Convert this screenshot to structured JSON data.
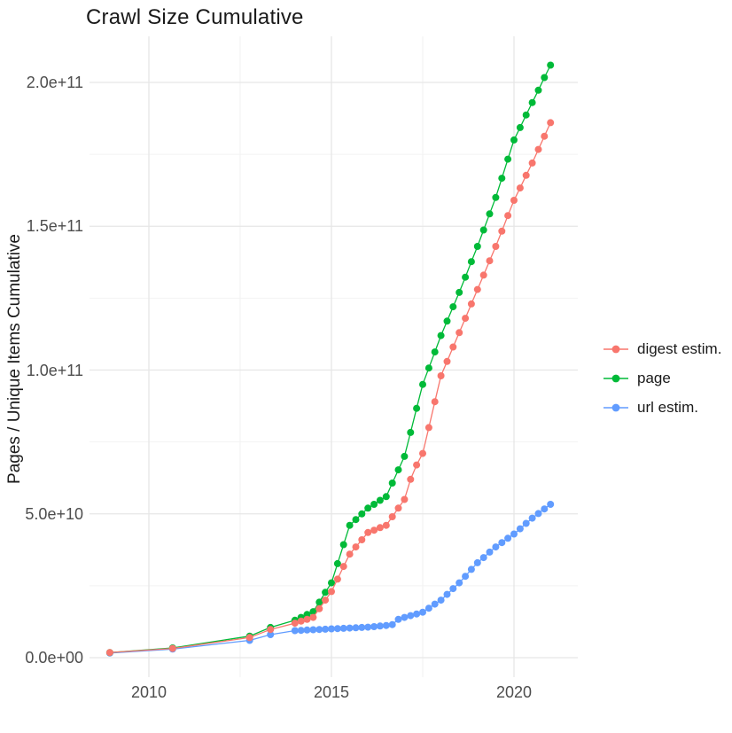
{
  "title": "Crawl Size Cumulative",
  "y_axis_label": "Pages / Unique Items Cumulative",
  "x_axis_label": "",
  "legend": {
    "position": "right",
    "items": [
      {
        "label": "digest estim.",
        "color": "#F8766D"
      },
      {
        "label": "page",
        "color": "#00BA38"
      },
      {
        "label": "url estim.",
        "color": "#619CFF"
      }
    ]
  },
  "chart_data": {
    "type": "scatter",
    "title": "Crawl Size Cumulative",
    "xlabel": "",
    "ylabel": "Pages / Unique Items Cumulative",
    "grid": true,
    "legend_position": "right",
    "value_unit": "1e9 (billions of pages / unique items)",
    "xlim": [
      2008.4,
      2021.6
    ],
    "ylim_1e9": [
      0,
      212
    ],
    "x_ticks": [
      {
        "label": "2010",
        "year": 2010
      },
      {
        "label": "2015",
        "year": 2015
      },
      {
        "label": "2020",
        "year": 2020
      }
    ],
    "x_minor_ticks": [
      2012.5,
      2017.5
    ],
    "y_ticks": [
      {
        "label": "0.0e+00",
        "value_1e9": 0
      },
      {
        "label": "5.0e+10",
        "value_1e9": 50
      },
      {
        "label": "1.0e+11",
        "value_1e9": 100
      },
      {
        "label": "1.5e+11",
        "value_1e9": 150
      },
      {
        "label": "2.0e+11",
        "value_1e9": 200
      }
    ],
    "y_minor_ticks_1e9": [
      25,
      75,
      125,
      175
    ],
    "x_years": [
      2008.93,
      2010.65,
      2012.76,
      2013.33,
      2014,
      2014.167,
      2014.333,
      2014.5,
      2014.667,
      2014.833,
      2015,
      2015.167,
      2015.333,
      2015.5,
      2015.667,
      2015.833,
      2016,
      2016.167,
      2016.333,
      2016.5,
      2016.667,
      2016.833,
      2017,
      2017.167,
      2017.333,
      2017.5,
      2017.667,
      2017.833,
      2018,
      2018.167,
      2018.333,
      2018.5,
      2018.667,
      2018.833,
      2019,
      2019.167,
      2019.333,
      2019.5,
      2019.667,
      2019.833,
      2020,
      2020.167,
      2020.333,
      2020.5,
      2020.667,
      2020.833,
      2021
    ],
    "series": [
      {
        "name": "digest estim.",
        "color": "#F8766D",
        "values_1e9": [
          1.8,
          3.2,
          7.0,
          9.8,
          12,
          12.7,
          13.3,
          14,
          17,
          20,
          23,
          27.3,
          31.7,
          36,
          38.5,
          41,
          43.5,
          44.3,
          45.2,
          46,
          49,
          52,
          55,
          62,
          67,
          71,
          80,
          89,
          98,
          103,
          108,
          113,
          118,
          123,
          128,
          133,
          138,
          143,
          148.3,
          153.7,
          159,
          163.3,
          167.7,
          172,
          176.7,
          181.3,
          186
        ]
      },
      {
        "name": "page",
        "color": "#00BA38",
        "values_1e9": [
          1.8,
          3.4,
          7.5,
          10.5,
          13,
          14,
          15,
          16,
          19.3,
          22.7,
          26,
          32.7,
          39.3,
          46,
          48,
          50,
          52,
          53.3,
          54.7,
          56,
          60.7,
          65.3,
          70,
          78.3,
          86.7,
          95,
          100.7,
          106.3,
          112,
          117,
          122,
          127,
          132.3,
          137.7,
          143,
          148.7,
          154.3,
          160,
          166.7,
          173.3,
          180,
          184.3,
          188.7,
          193,
          197.3,
          201.7,
          206
        ]
      },
      {
        "name": "url estim.",
        "color": "#619CFF",
        "values_1e9": [
          1.6,
          3.0,
          6.0,
          8.0,
          9.4,
          9.5,
          9.6,
          9.7,
          9.8,
          9.9,
          10.0,
          10.1,
          10.2,
          10.3,
          10.4,
          10.5,
          10.6,
          10.8,
          11.0,
          11.2,
          11.5,
          13.3,
          14,
          14.6,
          15.2,
          15.8,
          17.2,
          18.6,
          20,
          22,
          24,
          26,
          28.3,
          30.7,
          33,
          34.8,
          36.7,
          38.5,
          40,
          41.5,
          43,
          44.8,
          46.7,
          48.5,
          50.1,
          51.7,
          53.3
        ]
      }
    ]
  }
}
